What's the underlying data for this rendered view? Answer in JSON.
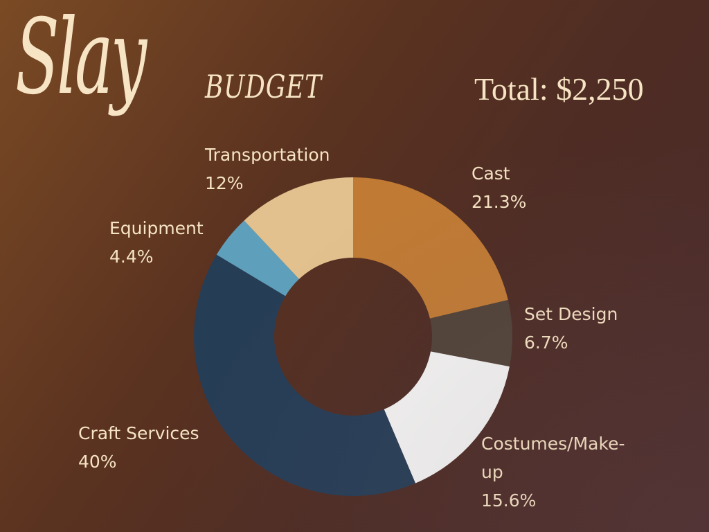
{
  "header": {
    "script_title": "Slay",
    "subtitle": "BUDGET",
    "total": "Total: $2,250"
  },
  "colors": {
    "cast": "#c07a34",
    "set_design": "#514339",
    "costumes": "#f4f4f3",
    "craft_services": "#263d56",
    "equipment": "#5e9fbb",
    "transportation": "#e2c18e",
    "text": "#f6e4c4"
  },
  "chart_data": {
    "type": "pie",
    "variant": "donut",
    "title": "",
    "categories": [
      "Cast",
      "Set Design",
      "Costumes/Make-up",
      "Craft Services",
      "Equipment",
      "Transportation"
    ],
    "values": [
      21.3,
      6.7,
      15.6,
      40,
      4.4,
      12
    ],
    "value_labels": [
      "21.3%",
      "6.7%",
      "15.6%",
      "40%",
      "4.4%",
      "12%"
    ],
    "label_texts": [
      "Cast",
      "Set Design",
      "Costumes/Make-up",
      "Craft Services",
      "Equipment",
      "Transportation"
    ],
    "colors": [
      "#c07a34",
      "#514339",
      "#f4f4f3",
      "#263d56",
      "#5e9fbb",
      "#e2c18e"
    ],
    "start_angle_deg": 0,
    "direction": "clockwise",
    "legend": "none"
  }
}
